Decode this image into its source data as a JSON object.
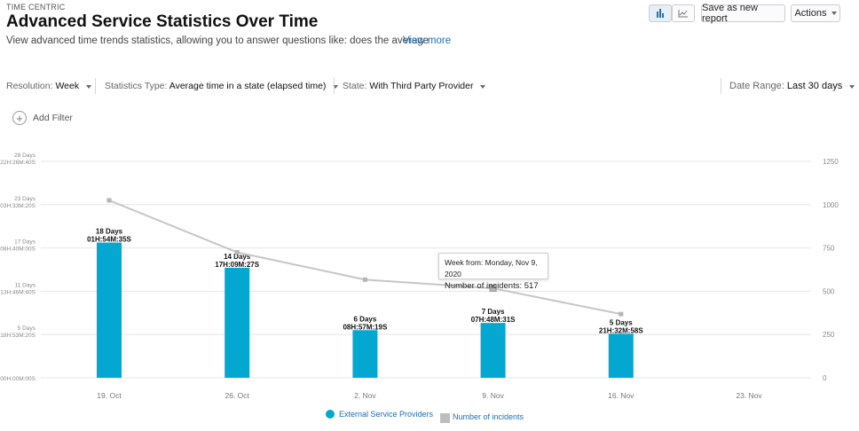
{
  "header": {
    "eyebrow": "TIME CENTRIC",
    "title": "Advanced Service Statistics Over Time",
    "subtitle": "View advanced time trends statistics, allowing you to answer questions like: does the average",
    "view_more": "View more"
  },
  "toolbar": {
    "bar_view_icon": "bar-chart-icon",
    "line_view_icon": "line-chart-icon",
    "save_label": "Save as new report",
    "actions_label": "Actions"
  },
  "filters": {
    "resolution_label": "Resolution:",
    "resolution_value": "Week",
    "stats_label": "Statistics Type:",
    "stats_value": "Average time in a state (elapsed time)",
    "state_label": "State:",
    "state_value": "With Third Party Provider",
    "date_label": "Date Range:",
    "date_value": "Last 30 days",
    "add_filter": "Add Filter"
  },
  "tooltip": {
    "line1": "Week from: Monday, Nov 9, 2020",
    "line2": "Number of incidents: 517"
  },
  "colors": {
    "bar": "#04a7cf",
    "line": "#c6c6c6",
    "link": "#1b6fb5"
  },
  "chart_data": {
    "type": "bar",
    "categories": [
      "19. Oct",
      "26. Oct",
      "2. Nov",
      "9. Nov",
      "16. Nov",
      "23. Nov"
    ],
    "series": [
      {
        "name": "External Service Providers",
        "type": "bar",
        "axis": "left",
        "values": [
          18.08,
          14.71,
          6.37,
          7.33,
          5.9,
          null
        ],
        "labels": [
          [
            "18 Days",
            "01H:54M:35S"
          ],
          [
            "14 Days",
            "17H:09M:27S"
          ],
          [
            "6 Days",
            "08H:57M:19S"
          ],
          [
            "7 Days",
            "07H:48M:31S"
          ],
          [
            "5 Days",
            "21H:32M:58S"
          ],
          null
        ]
      },
      {
        "name": "Number of incidents",
        "type": "line",
        "axis": "right",
        "values": [
          1025,
          725,
          567,
          517,
          368,
          null
        ]
      }
    ],
    "left_axis": {
      "ticks": [
        [
          "28 Days",
          "22H:26M:40S"
        ],
        [
          "23 Days",
          "03H:33M:20S"
        ],
        [
          "17 Days",
          "08H:40M:00S"
        ],
        [
          "11 Days",
          "13H:46M:40S"
        ],
        [
          "5 Days",
          "18H:53M:20S"
        ],
        [
          "",
          "00H:00M:00S"
        ]
      ],
      "ylim": [
        0,
        28.94
      ]
    },
    "right_axis": {
      "ticks": [
        "1250",
        "1000",
        "750",
        "500",
        "250",
        "0"
      ],
      "ylim": [
        0,
        1250
      ]
    },
    "grid": true,
    "legend_position": "bottom-center"
  }
}
